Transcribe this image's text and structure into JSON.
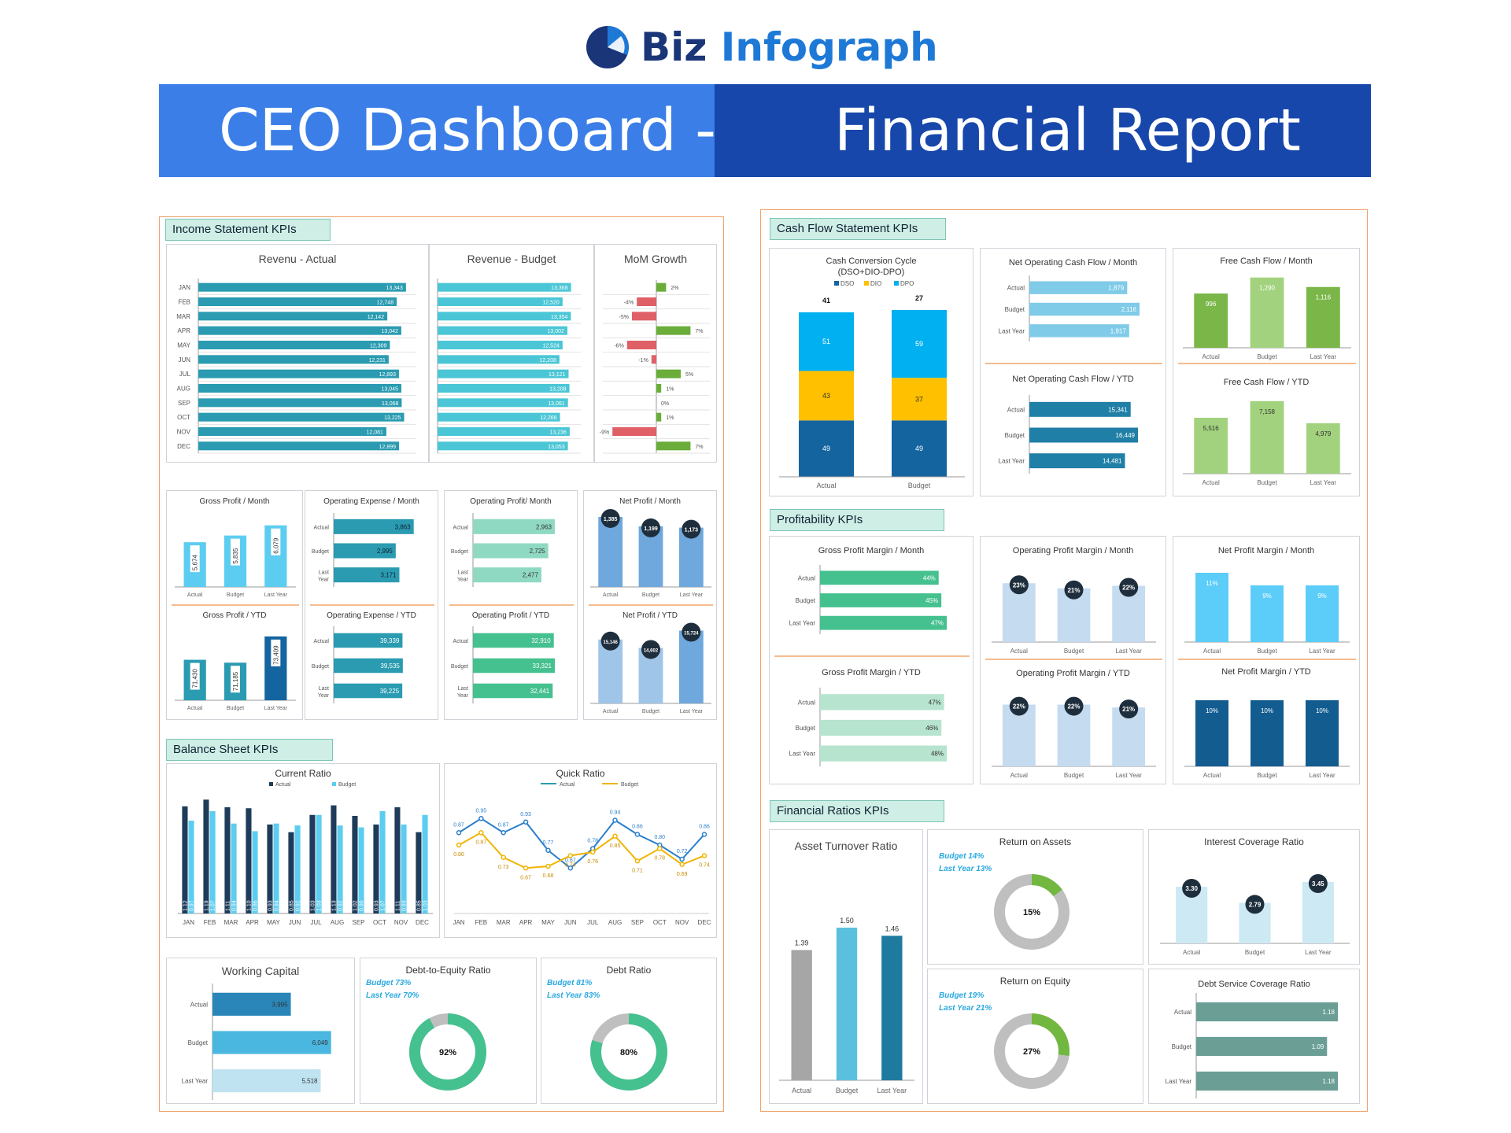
{
  "brand": {
    "part1": "Biz",
    "part2": "Infograph"
  },
  "banner": {
    "left": "CEO Dashboard -",
    "right": "Financial Report"
  },
  "colors": {
    "teal": "#2a9bb1",
    "light_teal": "#4bc6d6",
    "green": "#6aad3a",
    "red": "#e06068",
    "navy": "#1e3b5a",
    "cyan": "#5ccdf0",
    "dso": "#1464a0",
    "dio": "#ffc000",
    "dpo": "#00b0f0",
    "sea_green": "#45c08f"
  },
  "sections": {
    "income": "Income Statement KPIs",
    "balance": "Balance Sheet KPIs",
    "cashflow": "Cash Flow Statement KPIs",
    "profitability": "Profitability KPIs",
    "ratios": "Financial Ratios KPIs"
  },
  "labels": {
    "actual": "Actual",
    "budget": "Budget",
    "last_year": "Last Year",
    "last": "Last",
    "year": "Year"
  },
  "chart_data": [
    {
      "id": "revenue_actual",
      "type": "bar",
      "title": "Revenu - Actual",
      "categories": [
        "JAN",
        "FEB",
        "MAR",
        "APR",
        "MAY",
        "JUN",
        "JUL",
        "AUG",
        "SEP",
        "OCT",
        "NOV",
        "DEC"
      ],
      "values": [
        13343,
        12748,
        12142,
        13042,
        12309,
        12231,
        12893,
        13045,
        13068,
        13225,
        12081,
        12899
      ],
      "value_labels": [
        "13,343",
        "12,748",
        "12,142",
        "13,042",
        "12,309",
        "12,231",
        "12,893",
        "13,045",
        "13,068",
        "13,225",
        "12,081",
        "12,899"
      ]
    },
    {
      "id": "revenue_budget",
      "type": "bar",
      "title": "Revenue - Budget",
      "values": [
        13368,
        12520,
        13354,
        13002,
        12524,
        12208,
        13121,
        13208,
        13061,
        12266,
        13236,
        13053
      ],
      "value_labels": [
        "13,368",
        "12,520",
        "13,354",
        "13,002",
        "12,524",
        "12,208",
        "13,121",
        "13,208",
        "13,061",
        "12,266",
        "13,236",
        "13,053"
      ]
    },
    {
      "id": "mom_growth",
      "type": "bar",
      "title": "MoM Growth",
      "values": [
        2,
        -4,
        -5,
        7,
        -6,
        -1,
        5,
        1,
        0,
        1,
        -9,
        7
      ],
      "value_labels": [
        "2%",
        "-4%",
        "-5%",
        "7%",
        "-6%",
        "-1%",
        "5%",
        "1%",
        "0%",
        "1%",
        "-9%",
        "7%"
      ]
    },
    {
      "id": "gross_profit_month",
      "type": "bar",
      "title": "Gross Profit / Month",
      "categories": [
        "Actual",
        "Budget",
        "Last Year"
      ],
      "values": [
        5674,
        5835,
        6079
      ],
      "value_labels": [
        "5,674",
        "5,835",
        "6,079"
      ]
    },
    {
      "id": "gross_profit_ytd",
      "type": "bar",
      "title": "Gross Profit / YTD",
      "values": [
        71430,
        71185,
        73409
      ],
      "value_labels": [
        "71,430",
        "71,185",
        "73,409"
      ]
    },
    {
      "id": "opex_month",
      "type": "bar",
      "title": "Operating Expense / Month",
      "values": [
        3863,
        2995,
        3171
      ],
      "value_labels": [
        "3,863",
        "2,995",
        "3,171"
      ]
    },
    {
      "id": "opex_ytd",
      "type": "bar",
      "title": "Operating Expense / YTD",
      "values": [
        39339,
        39535,
        39225
      ],
      "value_labels": [
        "39,339",
        "39,535",
        "39,225"
      ]
    },
    {
      "id": "op_profit_month",
      "type": "bar",
      "title": "Operating Profit/ Month",
      "values": [
        2963,
        2725,
        2477
      ],
      "value_labels": [
        "2,963",
        "2,725",
        "2,477"
      ]
    },
    {
      "id": "op_profit_ytd",
      "type": "bar",
      "title": "Operating Profit / YTD",
      "values": [
        32910,
        33321,
        32441
      ],
      "value_labels": [
        "32,910",
        "33,321",
        "32,441"
      ]
    },
    {
      "id": "net_profit_month",
      "type": "bar",
      "title": "Net Profit / Month",
      "values": [
        1385,
        1199,
        1173
      ],
      "value_labels": [
        "1,385",
        "1,199",
        "1,173"
      ]
    },
    {
      "id": "net_profit_ytd",
      "type": "bar",
      "title": "Net Profit / YTD",
      "values": [
        15146,
        14602,
        15724
      ],
      "value_labels": [
        "15,146",
        "14,602",
        "15,724"
      ]
    },
    {
      "id": "current_ratio",
      "type": "bar",
      "title": "Current Ratio",
      "series": [
        {
          "name": "Actual",
          "values": [
            1.12,
            1.19,
            1.11,
            1.1,
            0.93,
            0.85,
            1.03,
            1.13,
            1.02,
            0.93,
            1.11,
            0.85
          ]
        },
        {
          "name": "Budget",
          "values": [
            0.97,
            1.07,
            0.94,
            0.86,
            0.94,
            0.92,
            1.03,
            0.92,
            0.9,
            1.07,
            0.93,
            1.03
          ]
        }
      ],
      "value_labels": {
        "actual": [
          "1.12",
          "1.19",
          "1.11",
          "1.10",
          "0.93",
          "0.85",
          "1.03",
          "1.13",
          "1.02",
          "0.93",
          "1.11",
          "0.85"
        ],
        "budget": [
          "0.97",
          "1.07",
          "0.94",
          "0.86",
          "0.94",
          "0.92",
          "1.03",
          "0.92",
          "0.90",
          "1.07",
          "0.93",
          "1.03"
        ]
      }
    },
    {
      "id": "quick_ratio",
      "type": "line",
      "title": "Quick Ratio",
      "series": [
        {
          "name": "Actual",
          "values": [
            0.87,
            0.95,
            0.87,
            0.93,
            0.77,
            0.67,
            0.78,
            0.94,
            0.86,
            0.8,
            0.72,
            0.86
          ]
        },
        {
          "name": "Budget",
          "values": [
            0.8,
            0.87,
            0.73,
            0.67,
            0.68,
            0.74,
            0.76,
            0.85,
            0.71,
            0.78,
            0.69,
            0.74
          ]
        }
      ],
      "value_labels": {
        "actual": [
          "0.87",
          "0.95",
          "0.87",
          "0.93",
          "0.77",
          "0.67",
          "0.78",
          "0.94",
          "0.86",
          "0.80",
          "0.72",
          "0.86"
        ],
        "budget": [
          "0.80",
          "0.87",
          "0.73",
          "0.67",
          "0.68",
          "0.74",
          "0.76",
          "0.85",
          "0.71",
          "0.78",
          "0.69",
          "0.74"
        ]
      }
    },
    {
      "id": "working_capital",
      "type": "bar",
      "title": "Working Capital",
      "values": [
        3995,
        6049,
        5518
      ],
      "value_labels": [
        "3,995",
        "6,049",
        "5,518"
      ]
    },
    {
      "id": "debt_to_equity",
      "type": "pie",
      "title": "Debt-to-Equity Ratio",
      "value": 92,
      "value_label": "92%",
      "notes": [
        "Budget 73%",
        "Last Year 70%"
      ]
    },
    {
      "id": "debt_ratio",
      "type": "pie",
      "title": "Debt Ratio",
      "value": 80,
      "value_label": "80%",
      "notes": [
        "Budget 81%",
        "Last Year 83%"
      ]
    },
    {
      "id": "ccc",
      "type": "bar",
      "title": "Cash Conversion Cycle",
      "subtitle": "(DSO+DIO-DPO)",
      "categories": [
        "Actual",
        "Budget"
      ],
      "legend": [
        "DSO",
        "DIO",
        "DPO"
      ],
      "series": [
        {
          "name": "DSO",
          "values": [
            49,
            49
          ]
        },
        {
          "name": "DIO",
          "values": [
            43,
            37
          ]
        },
        {
          "name": "DPO",
          "values": [
            51,
            59
          ]
        }
      ],
      "totals": [
        41,
        27
      ]
    },
    {
      "id": "ncf_month",
      "type": "bar",
      "title": "Net Operating Cash Flow / Month",
      "values": [
        1879,
        2116,
        1917
      ],
      "value_labels": [
        "1,879",
        "2,116",
        "1,917"
      ]
    },
    {
      "id": "ncf_ytd",
      "type": "bar",
      "title": "Net Operating Cash Flow / YTD",
      "values": [
        15341,
        16449,
        14481
      ],
      "value_labels": [
        "15,341",
        "16,449",
        "14,481"
      ]
    },
    {
      "id": "fcf_month",
      "type": "bar",
      "title": "Free Cash Flow / Month",
      "values": [
        996,
        1290,
        1116
      ],
      "value_labels": [
        "996",
        "1,290",
        "1,116"
      ]
    },
    {
      "id": "fcf_ytd",
      "type": "bar",
      "title": "Free Cash Flow  / YTD",
      "values": [
        5516,
        7158,
        4979
      ],
      "value_labels": [
        "5,516",
        "7,158",
        "4,979"
      ]
    },
    {
      "id": "gpm_month",
      "type": "bar",
      "title": "Gross Profit Margin / Month",
      "values": [
        44,
        45,
        47
      ],
      "value_labels": [
        "44%",
        "45%",
        "47%"
      ]
    },
    {
      "id": "gpm_ytd",
      "type": "bar",
      "title": "Gross Profit Margin / YTD",
      "values": [
        47,
        46,
        48
      ],
      "value_labels": [
        "47%",
        "46%",
        "48%"
      ]
    },
    {
      "id": "opm_month",
      "type": "bar",
      "title": "Operating Profit Margin / Month",
      "values": [
        23,
        21,
        22
      ],
      "value_labels": [
        "23%",
        "21%",
        "22%"
      ]
    },
    {
      "id": "opm_ytd",
      "type": "bar",
      "title": "Operating Profit Margin / YTD",
      "values": [
        22,
        22,
        21
      ],
      "value_labels": [
        "22%",
        "22%",
        "21%"
      ]
    },
    {
      "id": "npm_month",
      "type": "bar",
      "title": "Net Profit Margin / Month",
      "values": [
        11,
        9,
        9
      ],
      "value_labels": [
        "11%",
        "9%",
        "9%"
      ]
    },
    {
      "id": "npm_ytd",
      "type": "bar",
      "title": "Net Profit Margin / YTD",
      "values": [
        10,
        10,
        10
      ],
      "value_labels": [
        "10%",
        "10%",
        "10%"
      ]
    },
    {
      "id": "asset_turnover",
      "type": "bar",
      "title": "Asset Turnover Ratio",
      "values": [
        1.39,
        1.5,
        1.46
      ],
      "value_labels": [
        "1.39",
        "1.50",
        "1.46"
      ]
    },
    {
      "id": "roa",
      "type": "pie",
      "title": "Return on Assets",
      "value": 15,
      "value_label": "15%",
      "notes": [
        "Budget 14%",
        "Last Year 13%"
      ]
    },
    {
      "id": "roe",
      "type": "pie",
      "title": "Return on Equity",
      "value": 27,
      "value_label": "27%",
      "notes": [
        "Budget 19%",
        "Last Year 21%"
      ]
    },
    {
      "id": "interest_coverage",
      "type": "bar",
      "title": "Interest Coverage Ratio",
      "values": [
        3.3,
        2.79,
        3.45
      ],
      "value_labels": [
        "3.30",
        "2.79",
        "3.45"
      ]
    },
    {
      "id": "dscr",
      "type": "bar",
      "title": "Debt Service Coverage Ratio",
      "values": [
        1.18,
        1.09,
        1.18
      ],
      "value_labels": [
        "1.18",
        "1.09",
        "1.18"
      ]
    }
  ]
}
